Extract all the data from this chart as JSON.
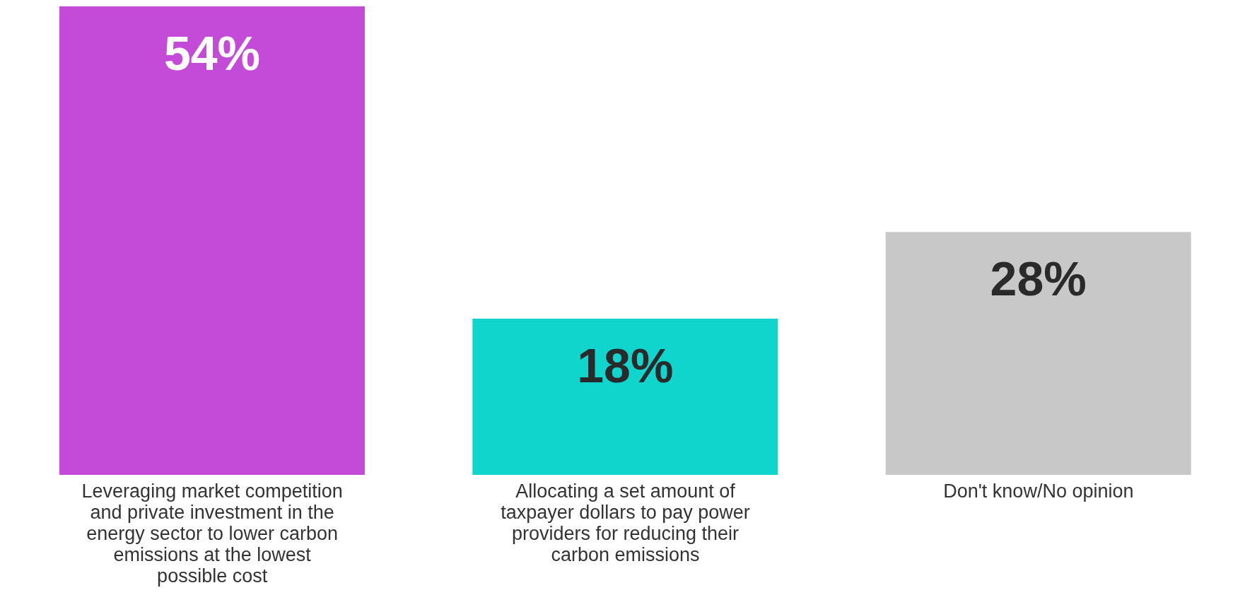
{
  "chart_data": {
    "type": "bar",
    "categories": [
      "Leveraging market competition and private investment in the energy sector to lower carbon emissions at the lowest possible cost",
      "Allocating a set amount of taxpayer dollars to pay power providers for reducing their carbon emissions",
      "Don't know/No opinion"
    ],
    "values": [
      54,
      18,
      28
    ],
    "colors": [
      "#c44bd8",
      "#0fd5cc",
      "#c8c8c8"
    ],
    "value_labels": [
      "54%",
      "18%",
      "28%"
    ]
  }
}
